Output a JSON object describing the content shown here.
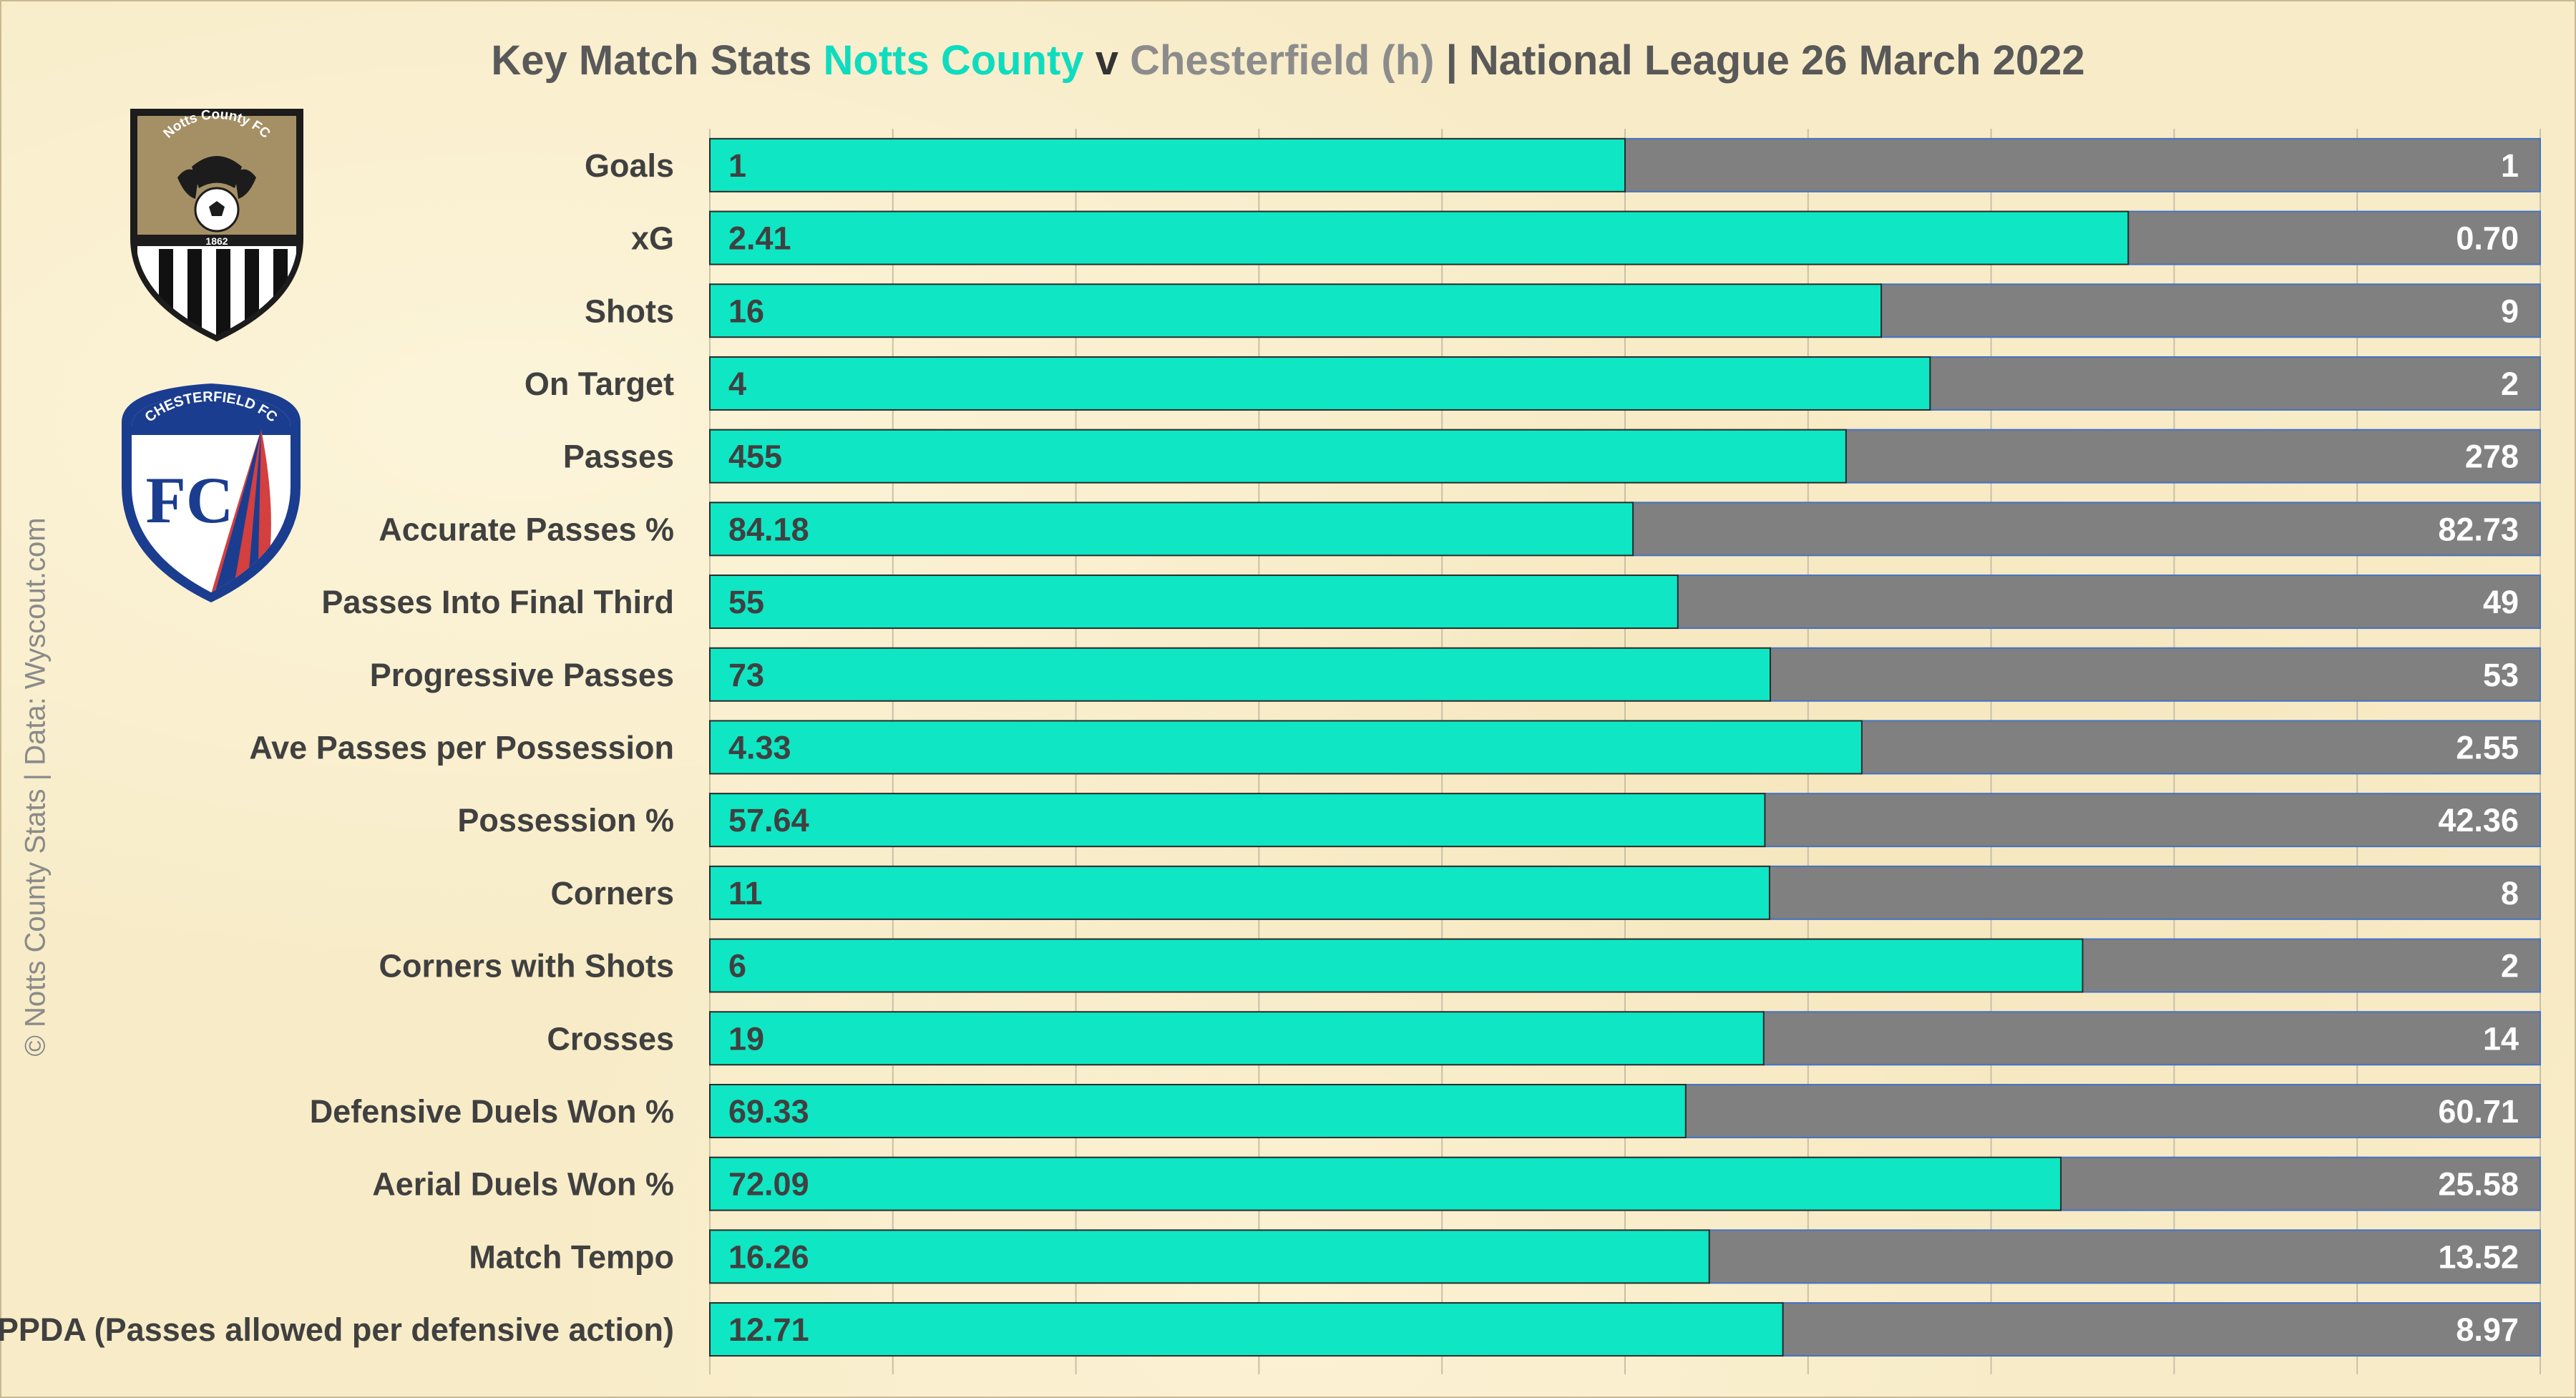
{
  "title": {
    "prefix": "Key Match Stats ",
    "home_team": "Notts County",
    "separator": " v ",
    "away_team": "Chesterfield (h)",
    "suffix": " | National League 26 March 2022"
  },
  "credit": "© Notts County Stats | Data: Wyscout.com",
  "logos": {
    "home": {
      "ring_text": "Notts County FC",
      "year": "1862"
    },
    "away": {
      "ring_text": "CHESTERFIELD FC",
      "initials": "FC"
    }
  },
  "colors": {
    "home": "#0fe6c4",
    "away": "#808080",
    "label": "#404040",
    "home_value_text": "#404040",
    "away_value_text": "#ffffff",
    "bar_border": "#4472c4"
  },
  "chart_data": {
    "type": "bar",
    "orientation": "horizontal",
    "stacked": "percent",
    "categories": [
      "Goals",
      "xG",
      "Shots",
      "On Target",
      "Passes",
      "Accurate Passes %",
      "Passes Into Final Third",
      "Progressive Passes",
      "Ave Passes per Possession",
      "Possession %",
      "Corners",
      "Corners with Shots",
      "Crosses",
      "Defensive Duels Won %",
      "Aerial Duels Won %",
      "Match Tempo",
      "PPDA (Passes allowed per defensive action)"
    ],
    "series": [
      {
        "name": "Notts County",
        "labels": [
          "1",
          "2.41",
          "16",
          "4",
          "455",
          "84.18",
          "55",
          "73",
          "4.33",
          "57.64",
          "11",
          "6",
          "19",
          "69.33",
          "72.09",
          "16.26",
          "12.71"
        ],
        "values": [
          1,
          2.41,
          16,
          4,
          455,
          84.18,
          55,
          73,
          4.33,
          57.64,
          11,
          6,
          19,
          69.33,
          72.09,
          16.26,
          12.71
        ]
      },
      {
        "name": "Chesterfield (h)",
        "labels": [
          "1",
          "0.70",
          "9",
          "2",
          "278",
          "82.73",
          "49",
          "53",
          "2.55",
          "42.36",
          "8",
          "2",
          "14",
          "60.71",
          "25.58",
          "13.52",
          "8.97"
        ],
        "values": [
          1,
          0.7,
          9,
          2,
          278,
          82.73,
          49,
          53,
          2.55,
          42.36,
          8,
          2,
          14,
          60.71,
          25.58,
          13.52,
          8.97
        ]
      }
    ],
    "xlim": [
      0,
      1
    ],
    "grid": true,
    "legend": "none"
  }
}
